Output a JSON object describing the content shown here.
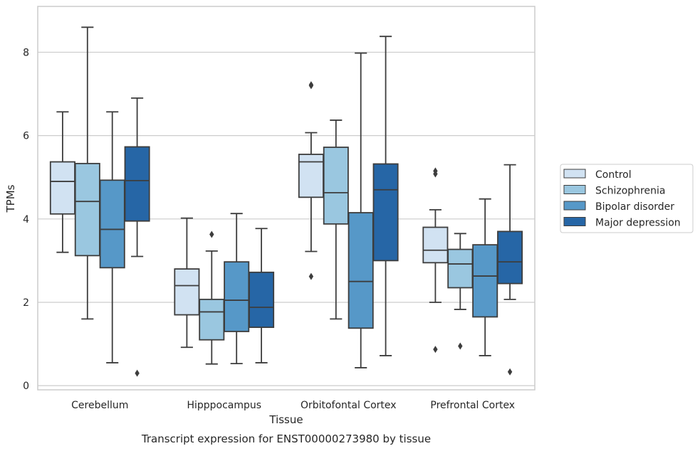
{
  "chart_data": {
    "type": "box",
    "title": "",
    "caption": "Transcript expression for ENST00000273980 by tissue",
    "xlabel": "Tissue",
    "ylabel": "TPMs",
    "ylim": [
      -0.1,
      9.1
    ],
    "yticks": [
      0,
      2,
      4,
      6,
      8
    ],
    "grid": "horizontal",
    "legend_position": "right",
    "categories": [
      "Cerebellum",
      "Hipppocampus",
      "Orbitofontal Cortex",
      "Prefrontal Cortex"
    ],
    "series": [
      {
        "name": "Control",
        "color": "#d1e2f2",
        "boxes": [
          {
            "whislo": 3.2,
            "q1": 4.12,
            "med": 4.9,
            "q3": 5.37,
            "whishi": 6.57,
            "fliers": []
          },
          {
            "whislo": 0.92,
            "q1": 1.7,
            "med": 2.4,
            "q3": 2.8,
            "whishi": 4.02,
            "fliers": []
          },
          {
            "whislo": 3.22,
            "q1": 4.52,
            "med": 5.37,
            "q3": 5.55,
            "whishi": 6.07,
            "fliers": [
              7.22,
              7.2,
              2.62
            ]
          },
          {
            "whislo": 2.0,
            "q1": 2.95,
            "med": 3.25,
            "q3": 3.8,
            "whishi": 4.22,
            "fliers": [
              5.15,
              5.08,
              0.87
            ]
          }
        ]
      },
      {
        "name": "Schizophrenia",
        "color": "#9ac7e0",
        "boxes": [
          {
            "whislo": 1.6,
            "q1": 3.12,
            "med": 4.42,
            "q3": 5.33,
            "whishi": 8.6,
            "fliers": []
          },
          {
            "whislo": 0.52,
            "q1": 1.1,
            "med": 1.77,
            "q3": 2.07,
            "whishi": 3.23,
            "fliers": [
              3.63
            ]
          },
          {
            "whislo": 1.6,
            "q1": 3.88,
            "med": 4.63,
            "q3": 5.72,
            "whishi": 6.37,
            "fliers": []
          },
          {
            "whislo": 1.83,
            "q1": 2.35,
            "med": 2.92,
            "q3": 3.27,
            "whishi": 3.65,
            "fliers": [
              0.95
            ]
          }
        ]
      },
      {
        "name": "Bipolar disorder",
        "color": "#5698c8",
        "boxes": [
          {
            "whislo": 0.55,
            "q1": 2.83,
            "med": 3.75,
            "q3": 4.93,
            "whishi": 6.57,
            "fliers": []
          },
          {
            "whislo": 0.53,
            "q1": 1.3,
            "med": 2.05,
            "q3": 2.97,
            "whishi": 4.13,
            "fliers": []
          },
          {
            "whislo": 0.43,
            "q1": 1.38,
            "med": 2.5,
            "q3": 4.15,
            "whishi": 7.98,
            "fliers": []
          },
          {
            "whislo": 0.72,
            "q1": 1.65,
            "med": 2.63,
            "q3": 3.38,
            "whishi": 4.48,
            "fliers": []
          }
        ]
      },
      {
        "name": "Major depression",
        "color": "#2666a6",
        "boxes": [
          {
            "whislo": 3.1,
            "q1": 3.95,
            "med": 4.92,
            "q3": 5.73,
            "whishi": 6.9,
            "fliers": [
              0.3
            ]
          },
          {
            "whislo": 0.55,
            "q1": 1.4,
            "med": 1.88,
            "q3": 2.72,
            "whishi": 3.77,
            "fliers": []
          },
          {
            "whislo": 0.72,
            "q1": 3.0,
            "med": 4.7,
            "q3": 5.32,
            "whishi": 8.38,
            "fliers": []
          },
          {
            "whislo": 2.07,
            "q1": 2.45,
            "med": 2.97,
            "q3": 3.7,
            "whishi": 5.3,
            "fliers": [
              0.33
            ]
          }
        ]
      }
    ]
  }
}
